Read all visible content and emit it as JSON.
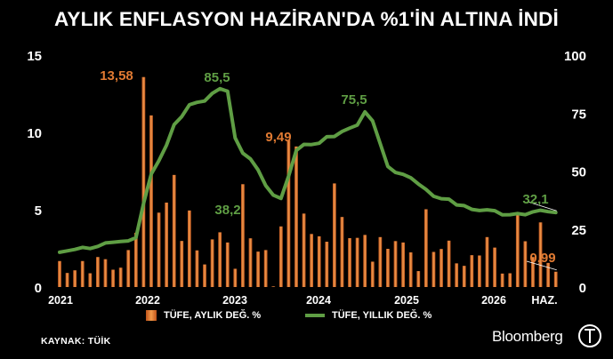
{
  "title": "AYLIK ENFLASYON HAZİRAN'DA %1'İN ALTINA İNDİ",
  "source": "KAYNAK: TÜİK",
  "brand": "Bloomberg",
  "colors": {
    "bar": "#e07a32",
    "line": "#5f9e44",
    "background": "#000000",
    "text": "#ffffff"
  },
  "chart_data": {
    "type": "bar+line",
    "x_tick_labels": [
      "2021",
      "2022",
      "2023",
      "2024",
      "2025",
      "2026",
      "HAZ."
    ],
    "left_axis": {
      "ticks": [
        "0",
        "5",
        "10",
        "15"
      ],
      "ylim": [
        0,
        15
      ]
    },
    "right_axis": {
      "ticks": [
        "0",
        "25",
        "50",
        "75",
        "100"
      ],
      "ylim": [
        0,
        100
      ]
    },
    "legend": [
      "TÜFE, AYLIK DEĞ. %",
      "TÜFE, YILLIK DEĞ. %"
    ],
    "series": [
      {
        "name": "TÜFE, AYLIK DEĞ. %",
        "kind": "bar",
        "axis": "left",
        "values": [
          1.68,
          0.91,
          1.08,
          1.68,
          0.89,
          1.94,
          1.8,
          1.12,
          1.25,
          2.39,
          3.51,
          13.58,
          11.1,
          4.81,
          5.46,
          7.25,
          2.98,
          4.95,
          2.37,
          1.46,
          3.08,
          3.54,
          2.88,
          1.18,
          6.65,
          3.15,
          2.29,
          2.39,
          0.04,
          3.92,
          9.49,
          9.09,
          4.75,
          3.43,
          3.28,
          2.93,
          6.7,
          4.53,
          3.16,
          3.18,
          3.37,
          1.64,
          3.23,
          2.47,
          2.97,
          2.88,
          2.24,
          1.03,
          5.03,
          2.27,
          2.46,
          3.0,
          1.53,
          1.37,
          2.06,
          2.04,
          3.23,
          2.55,
          0.87,
          0.89,
          4.84,
          2.96,
          1.94,
          4.18,
          1.56,
          0.99
        ]
      },
      {
        "name": "TÜFE, YILLIK DEĞ. %",
        "kind": "line",
        "axis": "right",
        "values": [
          15.0,
          15.6,
          16.2,
          17.1,
          16.6,
          17.5,
          19.0,
          19.3,
          19.6,
          19.9,
          21.3,
          36.1,
          48.7,
          54.4,
          61.1,
          70.0,
          73.5,
          78.6,
          79.6,
          80.2,
          83.5,
          85.5,
          84.4,
          64.3,
          57.7,
          55.2,
          50.5,
          43.7,
          39.6,
          38.2,
          47.8,
          58.9,
          61.5,
          61.4,
          62.0,
          64.8,
          64.9,
          67.1,
          68.5,
          69.8,
          75.5,
          71.6,
          61.8,
          52.0,
          49.4,
          48.6,
          47.1,
          44.4,
          42.1,
          39.1,
          38.1,
          37.9,
          35.4,
          35.1,
          33.5,
          33.0,
          33.3,
          32.9,
          31.1,
          31.2,
          31.7,
          31.2,
          32.4,
          33.1,
          32.5,
          32.1
        ]
      }
    ],
    "annotations": [
      {
        "text": "13,58",
        "series": "TÜFE, AYLIK DEĞ. %",
        "index": 11
      },
      {
        "text": "85,5",
        "series": "TÜFE, YILLIK DEĞ. %",
        "index": 21
      },
      {
        "text": "38,2",
        "series": "TÜFE, YILLIK DEĞ. %",
        "index": 29
      },
      {
        "text": "9,49",
        "series": "TÜFE, AYLIK DEĞ. %",
        "index": 30
      },
      {
        "text": "75,5",
        "series": "TÜFE, YILLIK DEĞ. %",
        "index": 40
      },
      {
        "text": "32,1",
        "series": "TÜFE, YILLIK DEĞ. %",
        "index": 65
      },
      {
        "text": "0,99",
        "series": "TÜFE, AYLIK DEĞ. %",
        "index": 65
      }
    ]
  }
}
